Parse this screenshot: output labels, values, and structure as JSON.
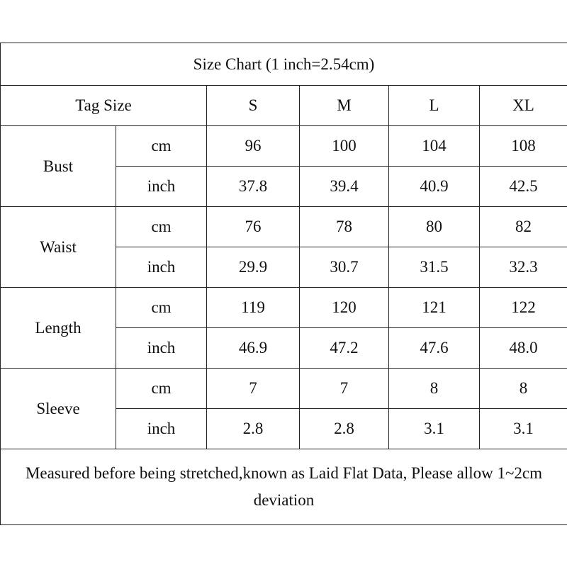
{
  "table": {
    "title": "Size Chart (1 inch=2.54cm)",
    "header": [
      "Tag Size",
      "S",
      "M",
      "L",
      "XL"
    ],
    "groups": [
      {
        "name": "Bust",
        "rows": [
          {
            "unit": "cm",
            "values": [
              "96",
              "100",
              "104",
              "108"
            ]
          },
          {
            "unit": "inch",
            "values": [
              "37.8",
              "39.4",
              "40.9",
              "42.5"
            ]
          }
        ]
      },
      {
        "name": "Waist",
        "rows": [
          {
            "unit": "cm",
            "values": [
              "76",
              "78",
              "80",
              "82"
            ]
          },
          {
            "unit": "inch",
            "values": [
              "29.9",
              "30.7",
              "31.5",
              "32.3"
            ]
          }
        ]
      },
      {
        "name": "Length",
        "rows": [
          {
            "unit": "cm",
            "values": [
              "119",
              "120",
              "121",
              "122"
            ]
          },
          {
            "unit": "inch",
            "values": [
              "46.9",
              "47.2",
              "47.6",
              "48.0"
            ]
          }
        ]
      },
      {
        "name": "Sleeve",
        "rows": [
          {
            "unit": "cm",
            "values": [
              "7",
              "7",
              "8",
              "8"
            ]
          },
          {
            "unit": "inch",
            "values": [
              "2.8",
              "2.8",
              "3.1",
              "3.1"
            ]
          }
        ]
      }
    ],
    "note": "Measured before being stretched,known as Laid Flat Data, Please allow 1~2cm deviation"
  }
}
